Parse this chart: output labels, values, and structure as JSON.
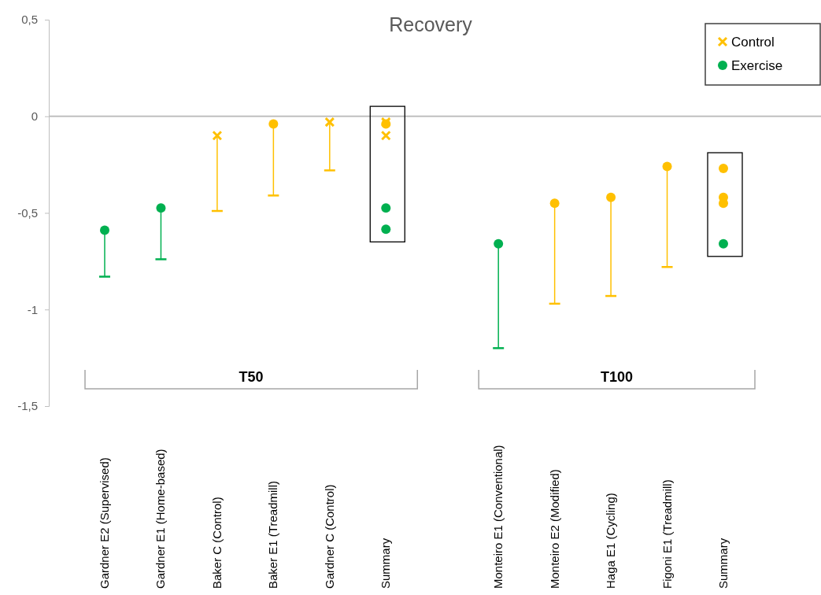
{
  "chart_data": {
    "type": "scatter",
    "title": "Recovery",
    "categories": [
      "Gardner E2 (Supervised)",
      "Gardner E1 (Home-based)",
      "Baker C (Control)",
      "Baker E1 (Treadmill)",
      "Gardner C (Control)",
      "Summary",
      null,
      "Monteiro E1 (Conventional)",
      "Monteiro E2 (Modified)",
      "Haga E1 (Cycling)",
      "Figoni E1 (Treadmill)",
      "Summary"
    ],
    "ylim": [
      -1.5,
      0.5
    ],
    "yticks": [
      {
        "value": 0.5,
        "label": "0,5"
      },
      0,
      {
        "value": -0.5,
        "label": "-0,5"
      },
      -1,
      {
        "value": -1.5,
        "label": "-1,5"
      }
    ],
    "legend": "top right",
    "annotations": [
      "T50",
      "T100"
    ],
    "series": [
      {
        "name": "Control",
        "marker": "cross",
        "color": "#ffc000",
        "values": [
          null,
          null,
          -0.1,
          null,
          -0.03,
          null,
          null,
          null,
          null,
          null,
          null,
          null
        ],
        "errors": [
          null,
          null,
          [
            -0.49,
            -0.1
          ],
          null,
          [
            -0.28,
            -0.03
          ],
          null,
          null,
          null,
          null,
          null,
          null,
          null
        ]
      },
      {
        "name": "Exercise",
        "marker": "circle",
        "colors": [
          "#00b050",
          "#00b050",
          null,
          "#ffc000",
          null,
          null,
          null,
          "#00b050",
          "#ffc000",
          "#ffc000",
          "#ffc000",
          null
        ],
        "values": [
          -0.59,
          -0.475,
          null,
          -0.04,
          null,
          null,
          null,
          -0.66,
          -0.45,
          -0.42,
          -0.26,
          null
        ],
        "errors": [
          [
            -0.83,
            -0.59
          ],
          [
            -0.74,
            -0.475
          ],
          null,
          [
            -0.41,
            -0.04
          ],
          null,
          null,
          null,
          [
            -1.2,
            -0.66
          ],
          [
            -0.97,
            -0.45
          ],
          [
            -0.93,
            -0.42
          ],
          [
            -0.78,
            -0.26
          ],
          null
        ]
      },
      {
        "marker": "cross",
        "color": "#ffc000",
        "values": [
          null,
          null,
          null,
          null,
          null,
          -0.03,
          null,
          null,
          null,
          null,
          null,
          null
        ]
      },
      {
        "marker": "cross",
        "color": "#ffc000",
        "values": [
          null,
          null,
          null,
          null,
          null,
          -0.1,
          null,
          null,
          null,
          null,
          null,
          null
        ]
      },
      {
        "marker": "circle",
        "colors": [
          null,
          null,
          null,
          null,
          null,
          "#ffc000",
          null,
          null,
          null,
          null,
          null,
          "#ffc000"
        ],
        "values": [
          null,
          null,
          null,
          null,
          null,
          -0.04,
          null,
          null,
          null,
          null,
          null,
          -0.27
        ]
      },
      {
        "marker": "circle",
        "colors": [
          null,
          null,
          null,
          null,
          null,
          "#00b050",
          null,
          null,
          null,
          null,
          null,
          "#ffc000"
        ],
        "values": [
          null,
          null,
          null,
          null,
          null,
          -0.475,
          null,
          null,
          null,
          null,
          null,
          -0.42
        ]
      },
      {
        "marker": "circle",
        "colors": [
          null,
          null,
          null,
          null,
          null,
          "#00b050",
          null,
          null,
          null,
          null,
          null,
          "#ffc000"
        ],
        "values": [
          null,
          null,
          null,
          null,
          null,
          -0.585,
          null,
          null,
          null,
          null,
          null,
          -0.45
        ]
      },
      {
        "marker": "circle",
        "colors": [
          null,
          null,
          null,
          null,
          null,
          null,
          null,
          null,
          null,
          null,
          null,
          "#00b050"
        ],
        "values": [
          null,
          null,
          null,
          null,
          null,
          null,
          null,
          null,
          null,
          null,
          null,
          -0.66
        ]
      }
    ]
  }
}
